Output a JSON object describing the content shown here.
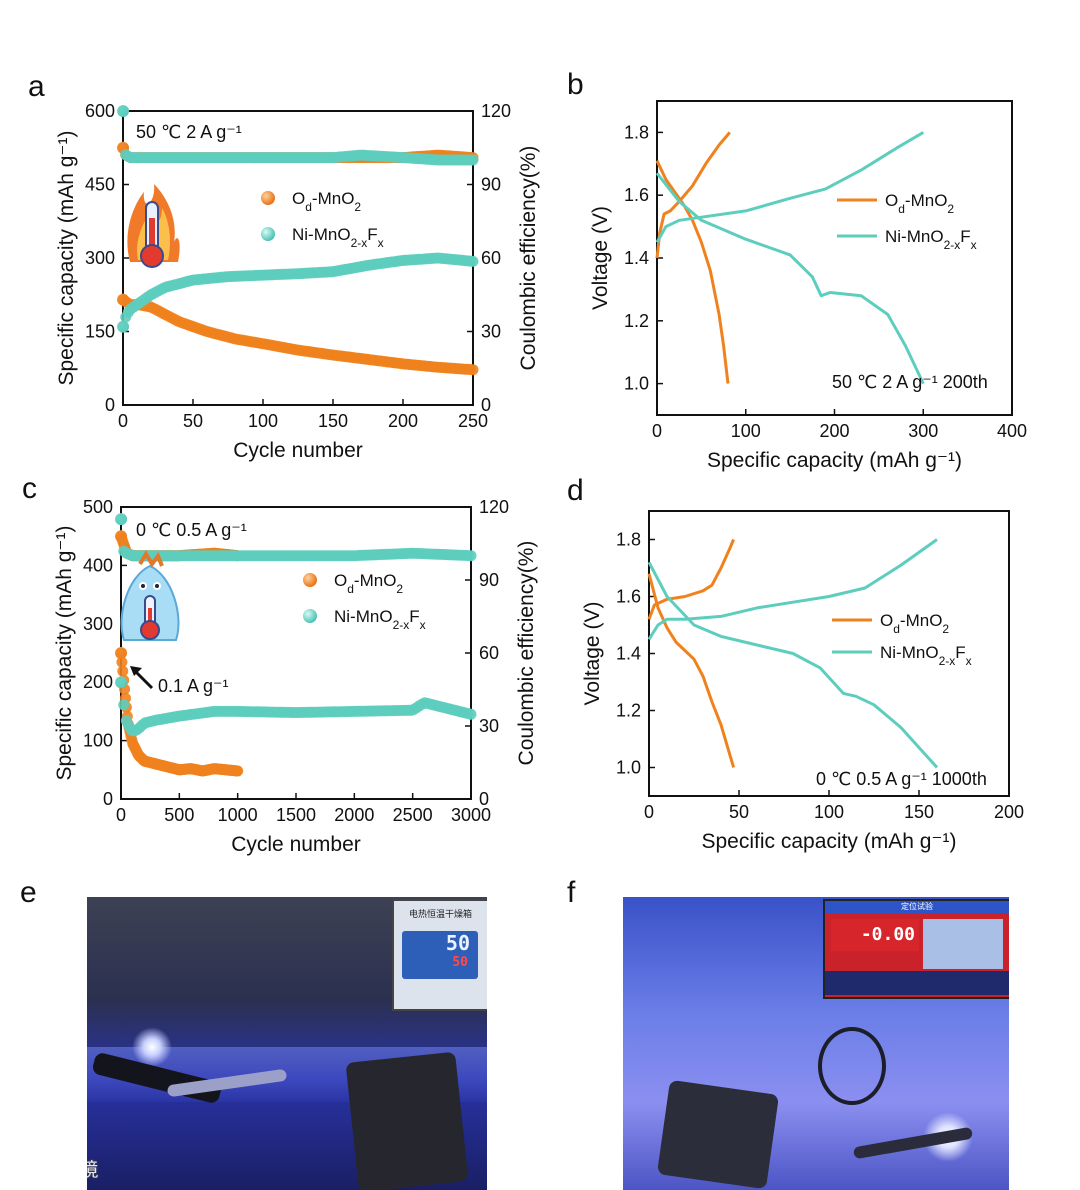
{
  "colors": {
    "od": "#F0821E",
    "ni": "#5DCDBE",
    "axis": "#111111"
  },
  "photo_e": {
    "letter": "e",
    "display_main": "50",
    "display_set": "50",
    "device_label": "电热恒温干燥箱"
  },
  "photo_f": {
    "letter": "f",
    "screen_value": "-0.00",
    "screen_title": "定位试验"
  },
  "watermark": "大数跨境",
  "chart_data": [
    {
      "id": "a",
      "type": "scatter",
      "xlabel": "Cycle number",
      "ylabel": "Specific capacity (mAh g⁻¹)",
      "y2label": "Coulombic efficiency(%)",
      "xlim": [
        0,
        250
      ],
      "ylim": [
        0,
        600
      ],
      "y2lim": [
        0,
        120
      ],
      "xticks": [
        "0",
        "50",
        "100",
        "150",
        "200",
        "250"
      ],
      "yticks": [
        "0",
        "150",
        "300",
        "450",
        "600"
      ],
      "y2ticks": [
        "0",
        "30",
        "60",
        "90",
        "120"
      ],
      "condition": "50 ℃   2 A g⁻¹",
      "legend": [
        "Od-MnO2",
        "Ni-MnO2-xFx"
      ],
      "series": [
        {
          "name": "Od-MnO2 capacity",
          "axis": "y",
          "x": [
            0,
            5,
            10,
            20,
            30,
            40,
            60,
            80,
            100,
            125,
            150,
            175,
            200,
            225,
            250
          ],
          "values": [
            215,
            205,
            205,
            200,
            185,
            170,
            150,
            135,
            125,
            112,
            102,
            93,
            84,
            77,
            72
          ]
        },
        {
          "name": "Ni-MnO2-xFx capacity",
          "axis": "y",
          "x": [
            0,
            2,
            5,
            10,
            20,
            30,
            50,
            75,
            100,
            125,
            150,
            175,
            200,
            225,
            240,
            250
          ],
          "values": [
            160,
            180,
            195,
            205,
            225,
            240,
            255,
            262,
            265,
            268,
            272,
            285,
            295,
            300,
            296,
            293
          ]
        },
        {
          "name": "Od-MnO2 efficiency",
          "axis": "y2",
          "x": [
            0,
            1,
            2,
            5,
            10,
            50,
            100,
            150,
            200,
            225,
            250
          ],
          "values": [
            105,
            103,
            102,
            101,
            101,
            101,
            101,
            101,
            101,
            102,
            101
          ]
        },
        {
          "name": "Ni-MnO2-xFx efficiency",
          "axis": "y2",
          "x": [
            0,
            1,
            2,
            5,
            10,
            50,
            100,
            150,
            170,
            200,
            225,
            250
          ],
          "values": [
            120,
            105,
            102,
            101,
            101,
            101,
            101,
            101,
            102,
            101,
            100,
            100
          ]
        }
      ]
    },
    {
      "id": "b",
      "type": "line",
      "xlabel": "Specific capacity (mAh g⁻¹)",
      "ylabel": "Voltage (V)",
      "xlim": [
        0,
        400
      ],
      "ylim": [
        0.9,
        1.9
      ],
      "xticks": [
        "0",
        "100",
        "200",
        "300",
        "400"
      ],
      "yticks": [
        "1.0",
        "1.2",
        "1.4",
        "1.6",
        "1.8"
      ],
      "condition": "50 ℃ 2 A g⁻¹ 200th",
      "legend": [
        "Od-MnO2",
        "Ni-MnO2-xFx"
      ],
      "series": [
        {
          "name": "Od-MnO2 charge",
          "x": [
            0,
            3,
            8,
            15,
            25,
            40,
            55,
            70,
            82
          ],
          "values": [
            1.4,
            1.48,
            1.54,
            1.55,
            1.58,
            1.63,
            1.7,
            1.76,
            1.8
          ]
        },
        {
          "name": "Od-MnO2 discharge",
          "x": [
            0,
            10,
            20,
            30,
            40,
            50,
            60,
            70,
            75,
            80
          ],
          "values": [
            1.71,
            1.65,
            1.61,
            1.57,
            1.52,
            1.45,
            1.36,
            1.22,
            1.12,
            1.0
          ]
        },
        {
          "name": "Ni-MnO2-xFx charge",
          "x": [
            0,
            10,
            25,
            50,
            100,
            150,
            190,
            230,
            270,
            300
          ],
          "values": [
            1.45,
            1.5,
            1.52,
            1.53,
            1.55,
            1.59,
            1.62,
            1.68,
            1.75,
            1.8
          ]
        },
        {
          "name": "Ni-MnO2-xFx discharge",
          "x": [
            0,
            25,
            50,
            100,
            150,
            175,
            185,
            195,
            230,
            260,
            280,
            300
          ],
          "values": [
            1.67,
            1.58,
            1.52,
            1.46,
            1.41,
            1.34,
            1.28,
            1.29,
            1.28,
            1.22,
            1.12,
            1.0
          ]
        }
      ]
    },
    {
      "id": "c",
      "type": "scatter",
      "xlabel": "Cycle number",
      "ylabel": "Specific capacity (mAh g⁻¹)",
      "y2label": "Coulombic efficiency(%)",
      "xlim": [
        0,
        3000
      ],
      "ylim": [
        0,
        500
      ],
      "y2lim": [
        0,
        120
      ],
      "xticks": [
        "0",
        "500",
        "1000",
        "1500",
        "2000",
        "2500",
        "3000"
      ],
      "yticks": [
        "0",
        "100",
        "200",
        "300",
        "400",
        "500"
      ],
      "y2ticks": [
        "0",
        "30",
        "60",
        "90",
        "120"
      ],
      "condition": "0 ℃  0.5 A g⁻¹",
      "arrow_label": "0.1 A g⁻¹",
      "legend": [
        "Od-MnO2",
        "Ni-MnO2-xFx"
      ],
      "series": [
        {
          "name": "Od-MnO2 capacity",
          "axis": "y",
          "x": [
            0,
            10,
            30,
            60,
            100,
            150,
            200,
            300,
            400,
            500,
            600,
            700,
            800,
            900,
            1000
          ],
          "values": [
            250,
            230,
            190,
            130,
            95,
            75,
            65,
            60,
            55,
            50,
            52,
            48,
            52,
            50,
            48
          ]
        },
        {
          "name": "Ni-MnO2-xFx capacity",
          "axis": "y",
          "x": [
            0,
            20,
            50,
            100,
            150,
            200,
            300,
            500,
            800,
            1000,
            1500,
            2000,
            2500,
            2600,
            3000
          ],
          "values": [
            200,
            165,
            130,
            115,
            120,
            130,
            135,
            142,
            150,
            150,
            148,
            150,
            152,
            165,
            145
          ]
        },
        {
          "name": "Od-MnO2 efficiency",
          "axis": "y2",
          "x": [
            0,
            50,
            100,
            300,
            500,
            800,
            1000
          ],
          "values": [
            108,
            101,
            100,
            100,
            100,
            101,
            100
          ]
        },
        {
          "name": "Ni-MnO2-xFx efficiency",
          "axis": "y2",
          "x": [
            0,
            20,
            50,
            100,
            500,
            1000,
            1500,
            2000,
            2500,
            3000
          ],
          "values": [
            115,
            102,
            101,
            100,
            100,
            100,
            100,
            100,
            101,
            100
          ]
        }
      ]
    },
    {
      "id": "d",
      "type": "line",
      "xlabel": "Specific capacity (mAh g⁻¹)",
      "ylabel": "Voltage (V)",
      "xlim": [
        0,
        200
      ],
      "ylim": [
        0.9,
        1.9
      ],
      "xticks": [
        "0",
        "50",
        "100",
        "150",
        "200"
      ],
      "yticks": [
        "1.0",
        "1.2",
        "1.4",
        "1.6",
        "1.8"
      ],
      "condition": "0 ℃ 0.5 A g⁻¹ 1000th",
      "legend": [
        "Od-MnO2",
        "Ni-MnO2-xFx"
      ],
      "series": [
        {
          "name": "Od-MnO2 charge",
          "x": [
            0,
            3,
            10,
            20,
            30,
            35,
            40,
            45,
            47
          ],
          "values": [
            1.52,
            1.57,
            1.59,
            1.6,
            1.62,
            1.64,
            1.7,
            1.77,
            1.8
          ]
        },
        {
          "name": "Od-MnO2 discharge",
          "x": [
            0,
            5,
            10,
            15,
            20,
            25,
            30,
            35,
            40,
            47
          ],
          "values": [
            1.68,
            1.56,
            1.49,
            1.44,
            1.41,
            1.38,
            1.32,
            1.23,
            1.15,
            1.0
          ]
        },
        {
          "name": "Ni-MnO2-xFx charge",
          "x": [
            0,
            5,
            10,
            20,
            40,
            60,
            80,
            100,
            120,
            140,
            160
          ],
          "values": [
            1.45,
            1.5,
            1.52,
            1.52,
            1.53,
            1.56,
            1.58,
            1.6,
            1.63,
            1.71,
            1.8
          ]
        },
        {
          "name": "Ni-MnO2-xFx discharge",
          "x": [
            0,
            10,
            25,
            40,
            60,
            80,
            95,
            108,
            115,
            125,
            140,
            160
          ],
          "values": [
            1.72,
            1.6,
            1.5,
            1.46,
            1.43,
            1.4,
            1.35,
            1.26,
            1.25,
            1.22,
            1.14,
            1.0
          ]
        }
      ]
    }
  ]
}
